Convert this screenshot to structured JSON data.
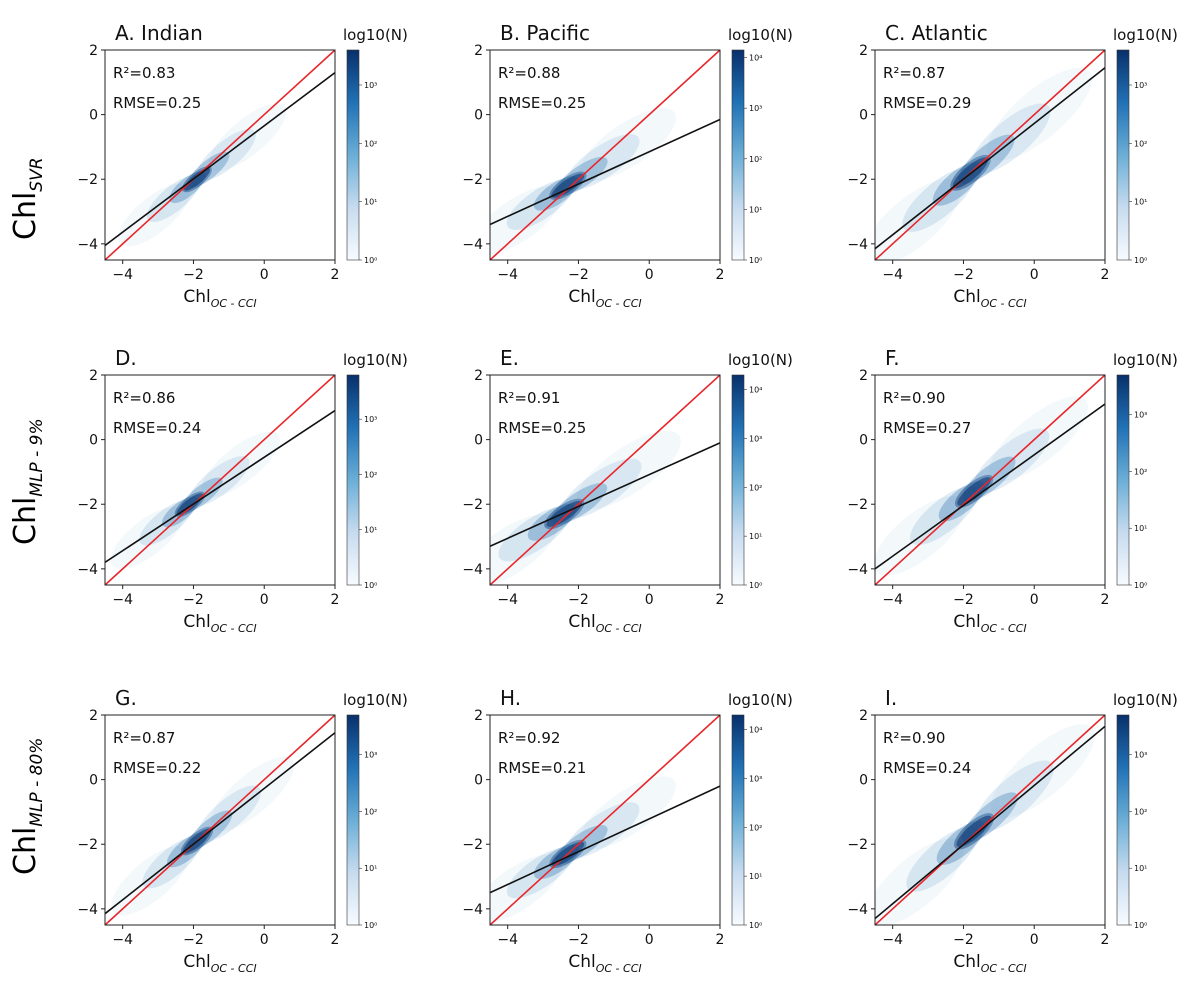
{
  "row_labels": [
    {
      "base": "Chl",
      "sub": "SVR"
    },
    {
      "base": "Chl",
      "sub": "MLP - 9%"
    },
    {
      "base": "Chl",
      "sub": "MLP - 80%"
    }
  ],
  "chart_data": [
    {
      "type": "heatmap",
      "title": "A. Indian",
      "xlabel": {
        "base": "Chl",
        "sub": "OC - CCI"
      },
      "r2": "R²=0.83",
      "rmse": "RMSE=0.25",
      "colorbar_label": "log10(N)",
      "colorbar_ticks": [
        "10⁰",
        "10¹",
        "10²",
        "10³"
      ],
      "colorbar_max_exp": 3.6,
      "xlim": [
        -4.5,
        2
      ],
      "ylim": [
        -4.5,
        2
      ],
      "xticks": [
        -4,
        -2,
        0,
        2
      ],
      "yticks": [
        -4,
        -2,
        0,
        2
      ],
      "one_to_one_line": [
        [
          -4.5,
          -4.5
        ],
        [
          2,
          2
        ]
      ],
      "fit_line": [
        [
          -4.5,
          -4.05
        ],
        [
          2,
          1.3
        ]
      ],
      "density_center": {
        "x": -1.9,
        "y": -2.0
      },
      "density_spread": 0.55
    },
    {
      "type": "heatmap",
      "title": "B. Pacific",
      "xlabel": {
        "base": "Chl",
        "sub": "OC - CCI"
      },
      "r2": "R²=0.88",
      "rmse": "RMSE=0.25",
      "colorbar_label": "log10(N)",
      "colorbar_ticks": [
        "10⁰",
        "10¹",
        "10²",
        "10³",
        "10⁴"
      ],
      "colorbar_max_exp": 4.15,
      "xlim": [
        -4.5,
        2
      ],
      "ylim": [
        -4.5,
        2
      ],
      "xticks": [
        -4,
        -2,
        0,
        2
      ],
      "yticks": [
        -4,
        -2,
        0,
        2
      ],
      "one_to_one_line": [
        [
          -4.5,
          -4.5
        ],
        [
          2,
          2
        ]
      ],
      "fit_line": [
        [
          -4.5,
          -3.4
        ],
        [
          2,
          -0.15
        ]
      ],
      "density_center": {
        "x": -2.3,
        "y": -2.2
      },
      "density_spread": 0.65
    },
    {
      "type": "heatmap",
      "title": "C. Atlantic",
      "xlabel": {
        "base": "Chl",
        "sub": "OC - CCI"
      },
      "r2": "R²=0.87",
      "rmse": "RMSE=0.29",
      "colorbar_label": "log10(N)",
      "colorbar_ticks": [
        "10⁰",
        "10¹",
        "10²",
        "10³"
      ],
      "colorbar_max_exp": 3.6,
      "xlim": [
        -4.5,
        2
      ],
      "ylim": [
        -4.5,
        2
      ],
      "xticks": [
        -4,
        -2,
        0,
        2
      ],
      "yticks": [
        -4,
        -2,
        0,
        2
      ],
      "one_to_one_line": [
        [
          -4.5,
          -4.5
        ],
        [
          2,
          2
        ]
      ],
      "fit_line": [
        [
          -4.5,
          -4.15
        ],
        [
          2,
          1.45
        ]
      ],
      "density_center": {
        "x": -1.8,
        "y": -1.8
      },
      "density_spread": 0.75
    },
    {
      "type": "heatmap",
      "title": "D.",
      "xlabel": {
        "base": "Chl",
        "sub": "OC - CCI"
      },
      "r2": "R²=0.86",
      "rmse": "RMSE=0.24",
      "colorbar_label": "log10(N)",
      "colorbar_ticks": [
        "10⁰",
        "10¹",
        "10²",
        "10³"
      ],
      "colorbar_max_exp": 3.8,
      "xlim": [
        -4.5,
        2
      ],
      "ylim": [
        -4.5,
        2
      ],
      "xticks": [
        -4,
        -2,
        0,
        2
      ],
      "yticks": [
        -4,
        -2,
        0,
        2
      ],
      "one_to_one_line": [
        [
          -4.5,
          -4.5
        ],
        [
          2,
          2
        ]
      ],
      "fit_line": [
        [
          -4.5,
          -3.8
        ],
        [
          2,
          0.9
        ]
      ],
      "density_center": {
        "x": -2.1,
        "y": -2.0
      },
      "density_spread": 0.55
    },
    {
      "type": "heatmap",
      "title": "E.",
      "xlabel": {
        "base": "Chl",
        "sub": "OC - CCI"
      },
      "r2": "R²=0.91",
      "rmse": "RMSE=0.25",
      "colorbar_label": "log10(N)",
      "colorbar_ticks": [
        "10⁰",
        "10¹",
        "10²",
        "10³",
        "10⁴"
      ],
      "colorbar_max_exp": 4.3,
      "xlim": [
        -4.5,
        2
      ],
      "ylim": [
        -4.5,
        2
      ],
      "xticks": [
        -4,
        -2,
        0,
        2
      ],
      "yticks": [
        -4,
        -2,
        0,
        2
      ],
      "one_to_one_line": [
        [
          -4.5,
          -4.5
        ],
        [
          2,
          2
        ]
      ],
      "fit_line": [
        [
          -4.5,
          -3.3
        ],
        [
          2,
          -0.1
        ]
      ],
      "density_center": {
        "x": -2.4,
        "y": -2.3
      },
      "density_spread": 0.7
    },
    {
      "type": "heatmap",
      "title": "F.",
      "xlabel": {
        "base": "Chl",
        "sub": "OC - CCI"
      },
      "r2": "R²=0.90",
      "rmse": "RMSE=0.27",
      "colorbar_label": "log10(N)",
      "colorbar_ticks": [
        "10⁰",
        "10¹",
        "10²",
        "10³"
      ],
      "colorbar_max_exp": 3.7,
      "xlim": [
        -4.5,
        2
      ],
      "ylim": [
        -4.5,
        2
      ],
      "xticks": [
        -4,
        -2,
        0,
        2
      ],
      "yticks": [
        -4,
        -2,
        0,
        2
      ],
      "one_to_one_line": [
        [
          -4.5,
          -4.5
        ],
        [
          2,
          2
        ]
      ],
      "fit_line": [
        [
          -4.5,
          -4.0
        ],
        [
          2,
          1.1
        ]
      ],
      "density_center": {
        "x": -1.7,
        "y": -1.6
      },
      "density_spread": 0.7
    },
    {
      "type": "heatmap",
      "title": "G.",
      "xlabel": {
        "base": "Chl",
        "sub": "OC - CCI"
      },
      "r2": "R²=0.87",
      "rmse": "RMSE=0.22",
      "colorbar_label": "log10(N)",
      "colorbar_ticks": [
        "10⁰",
        "10¹",
        "10²",
        "10³"
      ],
      "colorbar_max_exp": 3.7,
      "xlim": [
        -4.5,
        2
      ],
      "ylim": [
        -4.5,
        2
      ],
      "xticks": [
        -4,
        -2,
        0,
        2
      ],
      "yticks": [
        -4,
        -2,
        0,
        2
      ],
      "one_to_one_line": [
        [
          -4.5,
          -4.5
        ],
        [
          2,
          2
        ]
      ],
      "fit_line": [
        [
          -4.5,
          -4.15
        ],
        [
          2,
          1.45
        ]
      ],
      "density_center": {
        "x": -1.9,
        "y": -1.9
      },
      "density_spread": 0.6
    },
    {
      "type": "heatmap",
      "title": "H.",
      "xlabel": {
        "base": "Chl",
        "sub": "OC - CCI"
      },
      "r2": "R²=0.92",
      "rmse": "RMSE=0.21",
      "colorbar_label": "log10(N)",
      "colorbar_ticks": [
        "10⁰",
        "10¹",
        "10²",
        "10³",
        "10⁴"
      ],
      "colorbar_max_exp": 4.3,
      "xlim": [
        -4.5,
        2
      ],
      "ylim": [
        -4.5,
        2
      ],
      "xticks": [
        -4,
        -2,
        0,
        2
      ],
      "yticks": [
        -4,
        -2,
        0,
        2
      ],
      "one_to_one_line": [
        [
          -4.5,
          -4.5
        ],
        [
          2,
          2
        ]
      ],
      "fit_line": [
        [
          -4.5,
          -3.5
        ],
        [
          2,
          -0.2
        ]
      ],
      "density_center": {
        "x": -2.3,
        "y": -2.3
      },
      "density_spread": 0.65
    },
    {
      "type": "heatmap",
      "title": "I.",
      "xlabel": {
        "base": "Chl",
        "sub": "OC - CCI"
      },
      "r2": "R²=0.90",
      "rmse": "RMSE=0.24",
      "colorbar_label": "log10(N)",
      "colorbar_ticks": [
        "10⁰",
        "10¹",
        "10²",
        "10³"
      ],
      "colorbar_max_exp": 3.7,
      "xlim": [
        -4.5,
        2
      ],
      "ylim": [
        -4.5,
        2
      ],
      "xticks": [
        -4,
        -2,
        0,
        2
      ],
      "yticks": [
        -4,
        -2,
        0,
        2
      ],
      "one_to_one_line": [
        [
          -4.5,
          -4.5
        ],
        [
          2,
          2
        ]
      ],
      "fit_line": [
        [
          -4.5,
          -4.3
        ],
        [
          2,
          1.65
        ]
      ],
      "density_center": {
        "x": -1.7,
        "y": -1.6
      },
      "density_spread": 0.75
    }
  ]
}
